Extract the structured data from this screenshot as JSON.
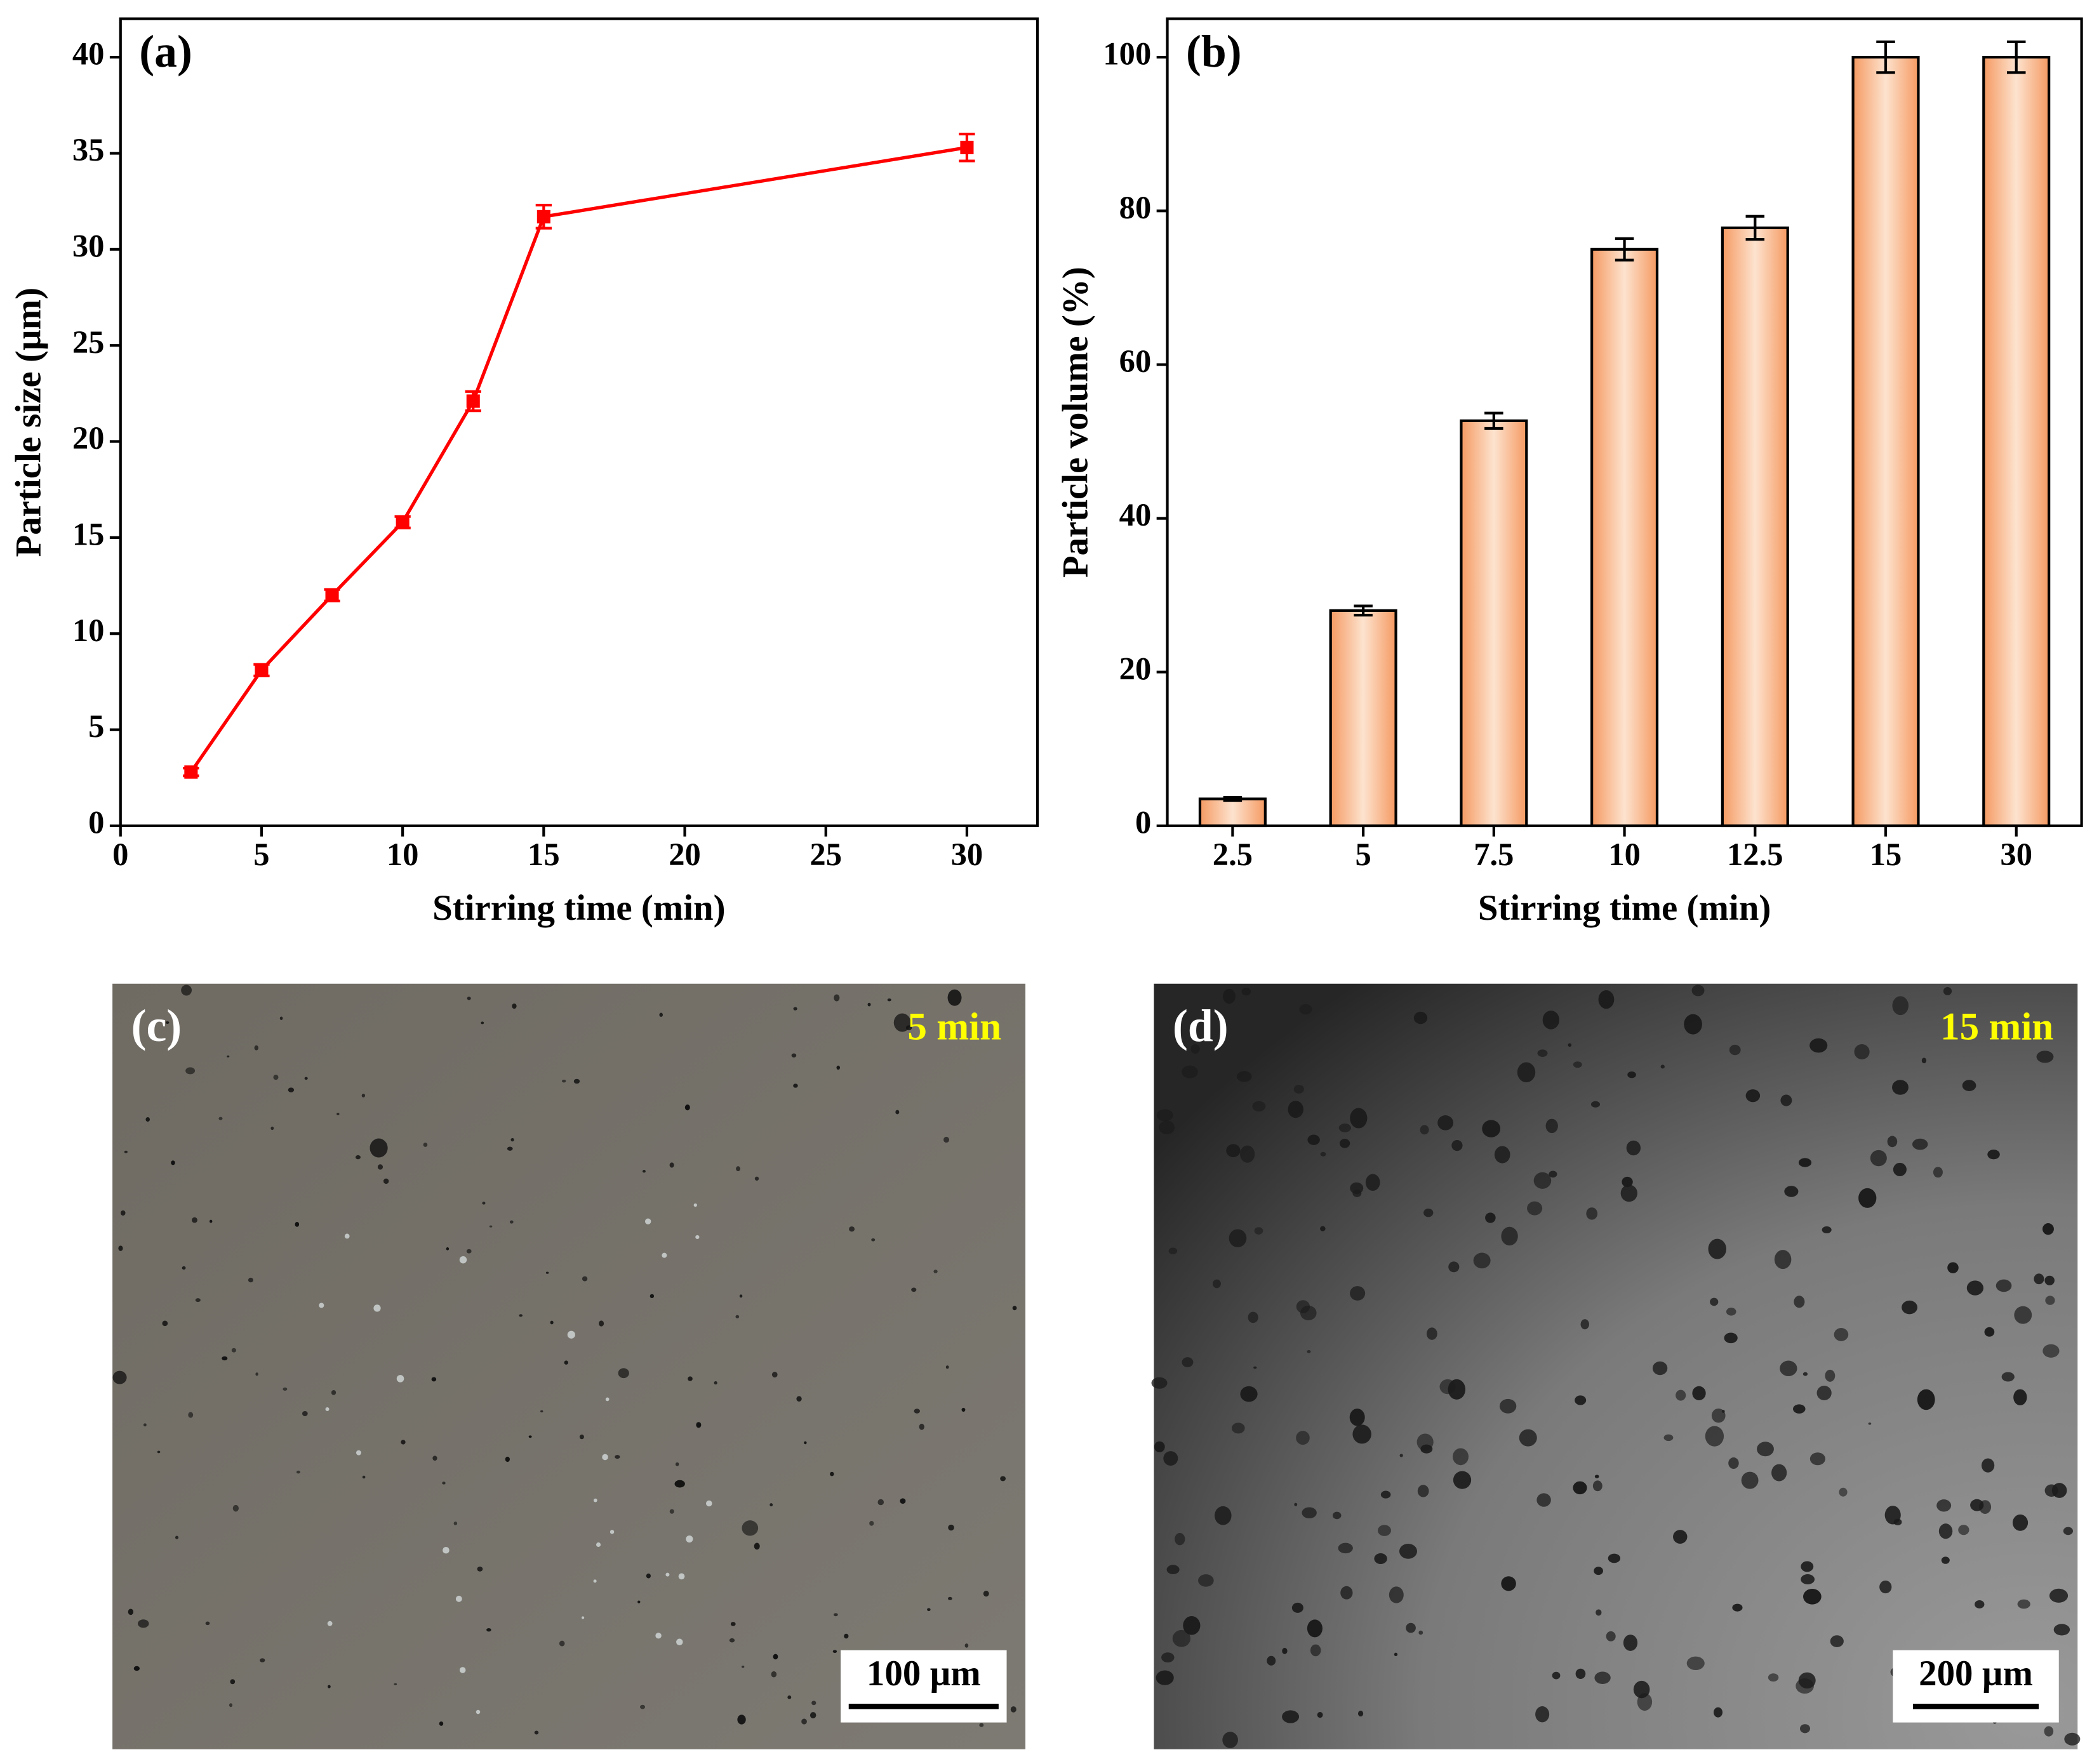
{
  "chart_data": [
    {
      "type": "line",
      "label": "(a)",
      "x": [
        2.5,
        5,
        7.5,
        10,
        12.5,
        15,
        30
      ],
      "values": [
        2.8,
        8.1,
        12.0,
        15.8,
        22.1,
        31.7,
        35.3
      ],
      "errors": [
        0.2,
        0.3,
        0.3,
        0.3,
        0.5,
        0.6,
        0.7
      ],
      "color": "#ff0000",
      "x_label": "Stirring time (min)",
      "y_label": "Particle size (µm)",
      "xlim": [
        0,
        32.5
      ],
      "xticks": [
        0,
        5,
        10,
        15,
        20,
        25,
        30
      ],
      "ylim": [
        0,
        42
      ],
      "yticks": [
        0,
        5,
        10,
        15,
        20,
        25,
        30,
        35,
        40
      ]
    },
    {
      "type": "bar",
      "label": "(b)",
      "categories": [
        "2.5",
        "5",
        "7.5",
        "10",
        "12.5",
        "15",
        "30"
      ],
      "values": [
        3.5,
        28,
        52.7,
        75,
        77.8,
        100,
        100
      ],
      "errors": [
        0.2,
        0.6,
        1.0,
        1.4,
        1.5,
        2.0,
        2.0
      ],
      "color": "#f59a62",
      "x_label": "Stirring time (min)",
      "y_label": "Particle volume (%)",
      "ylim": [
        0,
        105
      ],
      "yticks": [
        0,
        20,
        40,
        60,
        80,
        100
      ]
    }
  ],
  "images": [
    {
      "label": "(c)",
      "annotation": "5 min",
      "scale_bar": "100 µm"
    },
    {
      "label": "(d)",
      "annotation": "15 min",
      "scale_bar": "200 µm"
    }
  ]
}
